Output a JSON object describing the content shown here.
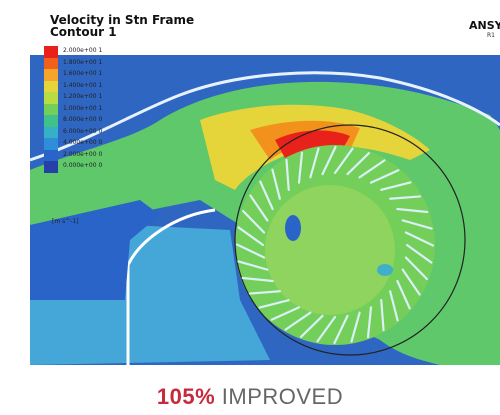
{
  "figure": {
    "title_line1": "Velocity in Stn Frame",
    "title_line2": "Contour 1",
    "brand": "ANSYS",
    "brand_sub": "R1",
    "units": "[m s^-1]"
  },
  "legend": {
    "labels": [
      "2.000e+00 1",
      "1.800e+00 1",
      "1.600e+00 1",
      "1.400e+00 1",
      "1.200e+00 1",
      "1.000e+00 1",
      "8.000e+00 0",
      "6.000e+00 0",
      "4.000e+00 0",
      "2.000e+00 0",
      "0.000e+00 0"
    ],
    "colors": [
      "#e8221a",
      "#f2611c",
      "#f7a42c",
      "#e6d43b",
      "#b9dc45",
      "#73cf5a",
      "#3fc28a",
      "#35b0c7",
      "#2f8ed9",
      "#2a64c8",
      "#2541a8"
    ]
  },
  "caption": {
    "percent": "105%",
    "word": "IMPROVED"
  }
}
